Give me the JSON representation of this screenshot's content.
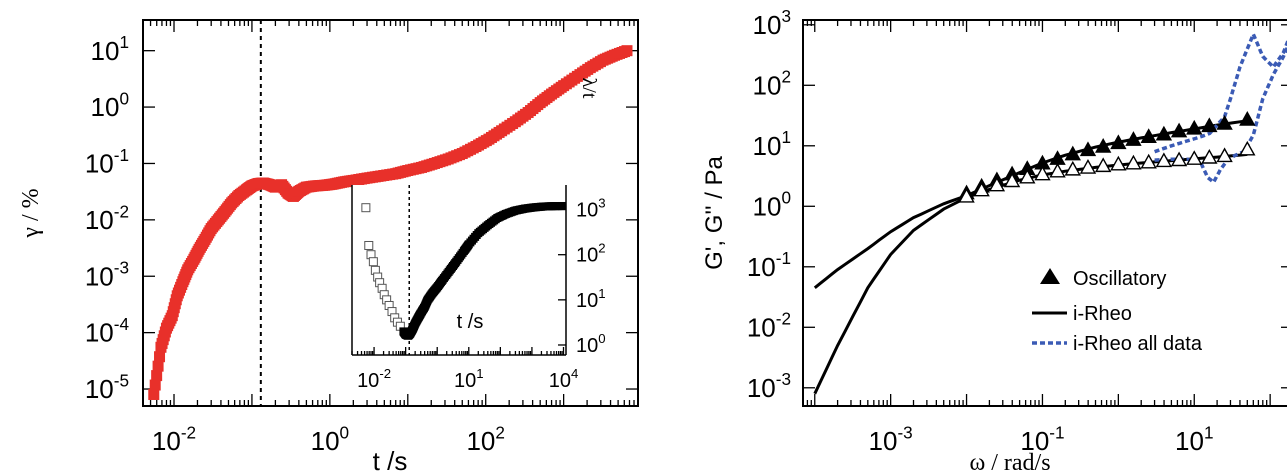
{
  "chart_data": [
    {
      "type": "scatter",
      "panel": "left",
      "xlabel": "t /s",
      "ylabel": "γ / %",
      "xscale": "log",
      "yscale": "log",
      "xlim": [
        0.004,
        9000
      ],
      "ylim": [
        5e-06,
        35
      ],
      "xticks": [
        {
          "base": "10",
          "exp": "-2",
          "value": 0.01
        },
        {
          "base": "10",
          "exp": "0",
          "value": 1
        },
        {
          "base": "10",
          "exp": "2",
          "value": 100
        }
      ],
      "yticks": [
        {
          "base": "10",
          "exp": "-5",
          "value": 1e-05
        },
        {
          "base": "10",
          "exp": "-4",
          "value": 0.0001
        },
        {
          "base": "10",
          "exp": "-3",
          "value": 0.001
        },
        {
          "base": "10",
          "exp": "-2",
          "value": 0.01
        },
        {
          "base": "10",
          "exp": "-1",
          "value": 0.1
        },
        {
          "base": "10",
          "exp": "0",
          "value": 1
        },
        {
          "base": "10",
          "exp": "1",
          "value": 10
        }
      ],
      "vline_x": 0.13,
      "marker": "filled-square",
      "color": "#e8302a",
      "series": [
        {
          "x": [
            0.0055,
            0.0068,
            0.008,
            0.0095,
            0.011,
            0.013,
            0.015,
            0.018,
            0.021,
            0.025,
            0.03,
            0.037,
            0.045,
            0.055,
            0.068,
            0.085,
            0.1,
            0.12,
            0.14,
            0.17,
            0.2,
            0.24,
            0.29,
            0.34,
            0.4,
            0.5,
            0.65,
            0.85,
            1.1,
            1.5,
            2,
            3,
            4.5,
            7,
            10,
            15,
            22,
            33,
            50,
            75,
            110,
            160,
            240,
            350,
            500,
            700,
            1000,
            1500,
            2200,
            3200,
            4500,
            6500
          ],
          "y": [
            8e-06,
            5.5e-05,
            0.00012,
            0.0002,
            0.00045,
            0.0008,
            0.0013,
            0.002,
            0.003,
            0.0045,
            0.007,
            0.01,
            0.014,
            0.02,
            0.027,
            0.034,
            0.04,
            0.044,
            0.045,
            0.042,
            0.038,
            0.042,
            0.03,
            0.026,
            0.032,
            0.038,
            0.04,
            0.041,
            0.043,
            0.047,
            0.05,
            0.055,
            0.06,
            0.066,
            0.075,
            0.085,
            0.1,
            0.12,
            0.15,
            0.2,
            0.27,
            0.38,
            0.55,
            0.8,
            1.2,
            1.7,
            2.4,
            3.5,
            5,
            6.8,
            8.3,
            10
          ]
        }
      ],
      "inset": {
        "type": "scatter",
        "xlabel": "t /s",
        "ylabel": "λ/t",
        "xscale": "log",
        "yscale": "log",
        "xlim": [
          0.002,
          12000
        ],
        "ylim": [
          0.6,
          3500
        ],
        "xticks": [
          {
            "base": "10",
            "exp": "-2",
            "value": 0.01
          },
          {
            "base": "10",
            "exp": "1",
            "value": 10
          },
          {
            "base": "10",
            "exp": "4",
            "value": 10000
          }
        ],
        "yticks": [
          {
            "base": "10",
            "exp": "0",
            "value": 1
          },
          {
            "base": "10",
            "exp": "1",
            "value": 10
          },
          {
            "base": "10",
            "exp": "2",
            "value": 100
          },
          {
            "base": "10",
            "exp": "3",
            "value": 1000
          }
        ],
        "vline_x": 0.13,
        "series": [
          {
            "marker": "open-square",
            "x": [
              0.0055,
              0.0068,
              0.008,
              0.0095,
              0.011,
              0.013,
              0.015,
              0.018,
              0.021,
              0.025,
              0.03,
              0.037,
              0.045,
              0.055,
              0.068
            ],
            "y": [
              1100,
              160,
              100,
              70,
              45,
              32,
              24,
              18,
              13,
              10,
              7.5,
              5.5,
              4,
              3.2,
              2.6
            ]
          },
          {
            "marker": "filled-square",
            "x": [
              0.085,
              0.1,
              0.12,
              0.14,
              0.17,
              0.2,
              0.25,
              0.3,
              0.4,
              0.5,
              0.7,
              1,
              1.5,
              2.5,
              4,
              7,
              10,
              20,
              40,
              80,
              150,
              300,
              600,
              1200,
              2500,
              5000,
              9000
            ],
            "y": [
              2,
              1.7,
              1.6,
              1.8,
              2.3,
              3,
              4,
              5,
              7,
              10,
              14,
              19,
              28,
              45,
              70,
              120,
              170,
              300,
              450,
              650,
              800,
              950,
              1050,
              1120,
              1170,
              1190,
              1200
            ]
          }
        ]
      }
    },
    {
      "type": "line",
      "panel": "right",
      "xlabel": "ω / rad/s",
      "ylabel": "G', G'' / Pa",
      "xscale": "log",
      "yscale": "log",
      "xlim": [
        7e-05,
        200
      ],
      "ylim": [
        0.0005,
        1200
      ],
      "xticks": [
        {
          "base": "10",
          "exp": "-3",
          "value": 0.001
        },
        {
          "base": "10",
          "exp": "-1",
          "value": 0.1
        },
        {
          "base": "10",
          "exp": "1",
          "value": 10
        }
      ],
      "yticks": [
        {
          "base": "10",
          "exp": "-3",
          "value": 0.001
        },
        {
          "base": "10",
          "exp": "-2",
          "value": 0.01
        },
        {
          "base": "10",
          "exp": "-1",
          "value": 0.1
        },
        {
          "base": "10",
          "exp": "0",
          "value": 1
        },
        {
          "base": "10",
          "exp": "1",
          "value": 10
        },
        {
          "base": "10",
          "exp": "2",
          "value": 100
        },
        {
          "base": "10",
          "exp": "3",
          "value": 1000
        }
      ],
      "legend_position": "lower-right",
      "series": [
        {
          "name": "Oscillatory",
          "style": "markers",
          "markers": [
            {
              "kind": "filled-triangle",
              "x": [
                0.01,
                0.0158,
                0.0251,
                0.0398,
                0.0631,
                0.1,
                0.158,
                0.251,
                0.398,
                0.631,
                1,
                1.58,
                2.51,
                3.98,
                6.31,
                10,
                15.8,
                25.1,
                50
              ],
              "y": [
                1.7,
                2.2,
                2.8,
                3.5,
                4.3,
                5.3,
                6.3,
                7.5,
                8.8,
                10,
                11.5,
                13,
                14.5,
                16,
                18,
                20,
                22,
                24,
                28
              ]
            },
            {
              "kind": "open-triangle",
              "x": [
                0.01,
                0.0158,
                0.0251,
                0.0398,
                0.0631,
                0.1,
                0.158,
                0.251,
                0.398,
                0.631,
                1,
                1.58,
                2.51,
                3.98,
                6.31,
                10,
                15.8,
                25.1,
                50
              ],
              "y": [
                1.5,
                1.9,
                2.3,
                2.7,
                3.1,
                3.5,
                3.9,
                4.2,
                4.5,
                4.8,
                5.1,
                5.3,
                5.5,
                5.8,
                6,
                6.3,
                6.6,
                7,
                9
              ]
            }
          ]
        },
        {
          "name": "i-Rheo",
          "style": "solid",
          "color": "#000000",
          "curves": [
            {
              "x": [
                0.0001,
                0.0002,
                0.0005,
                0.001,
                0.002,
                0.005,
                0.01,
                0.02,
                0.05,
                0.1,
                0.2,
                0.5,
                1,
                2,
                5,
                10,
                20,
                50
              ],
              "y": [
                0.045,
                0.09,
                0.2,
                0.38,
                0.65,
                1.1,
                1.5,
                2.2,
                3.6,
                5.2,
                7,
                9.5,
                11.5,
                13.5,
                16.5,
                19,
                22,
                26
              ]
            },
            {
              "x": [
                0.0001,
                0.0002,
                0.0005,
                0.001,
                0.002,
                0.005,
                0.01,
                0.02,
                0.05,
                0.1,
                0.2,
                0.5,
                1,
                2,
                5,
                10,
                20,
                50
              ],
              "y": [
                0.0008,
                0.005,
                0.045,
                0.16,
                0.4,
                0.9,
                1.4,
                1.9,
                2.7,
                3.3,
                3.8,
                4.4,
                4.8,
                5.2,
                5.7,
                6.1,
                6.5,
                7.2
              ]
            }
          ]
        },
        {
          "name": "i-Rheo all data",
          "style": "dotted",
          "color": "#3b5bb5",
          "curves": [
            {
              "x": [
                3,
                5,
                8,
                12,
                16,
                20,
                25,
                30,
                40,
                60,
                80,
                110,
                150,
                200
              ],
              "y": [
                8,
                10,
                12,
                14,
                16,
                22,
                30,
                60,
                200,
                700,
                300,
                200,
                350,
                900
              ]
            },
            {
              "x": [
                3,
                5,
                8,
                12,
                15,
                18,
                22,
                28,
                35,
                45,
                60,
                80,
                110,
                150,
                200
              ],
              "y": [
                5.8,
                6,
                6,
                5.5,
                3,
                2.5,
                4,
                6,
                7,
                8,
                15,
                60,
                150,
                300,
                700
              ]
            }
          ]
        }
      ]
    }
  ]
}
